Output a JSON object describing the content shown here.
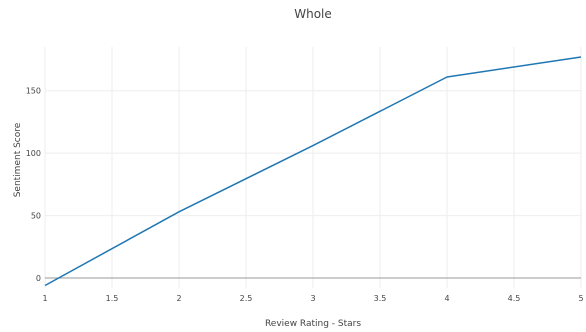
{
  "chart_data": {
    "type": "line",
    "title": "Whole",
    "xlabel": "Review Rating - Stars",
    "ylabel": "Sentiment Score",
    "xlim": [
      1,
      5
    ],
    "ylim": [
      -8,
      185
    ],
    "xticks": [
      1,
      1.5,
      2,
      2.5,
      3,
      3.5,
      4,
      4.5,
      5
    ],
    "xtick_labels": [
      "1",
      "1.5",
      "2",
      "2.5",
      "3",
      "3.5",
      "4",
      "4.5",
      "5"
    ],
    "yticks": [
      0,
      50,
      100,
      150
    ],
    "ytick_labels": [
      "0",
      "50",
      "100",
      "150"
    ],
    "grid": true,
    "legend": false,
    "series": [
      {
        "x": [
          1,
          2,
          3,
          4,
          5
        ],
        "y": [
          -6,
          53,
          106,
          161,
          177
        ],
        "color": "#1f77b4"
      }
    ]
  }
}
